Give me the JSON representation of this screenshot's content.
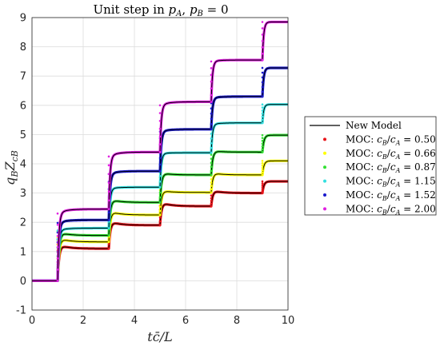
{
  "chart_data": {
    "type": "line",
    "title": "Unit step in pA, pB = 0",
    "xlabel": "tc̄/L",
    "ylabel": "qBZcB",
    "xlim": [
      0,
      10
    ],
    "ylim": [
      -1,
      9
    ],
    "xticks": [
      0,
      2,
      4,
      6,
      8,
      10
    ],
    "yticks": [
      -1,
      0,
      1,
      2,
      3,
      4,
      5,
      6,
      7,
      8,
      9
    ],
    "grid": true,
    "legend_position": "right",
    "steps_at": [
      1,
      3,
      5,
      7,
      9
    ],
    "series": [
      {
        "name": "New Model",
        "style": "line",
        "color": "#000000"
      },
      {
        "name": "MOC: cB/cA = 0.50",
        "style": "markers",
        "color": "#e8141a",
        "ratio": 0.5,
        "levels": [
          0,
          1.1,
          1.9,
          2.55,
          3.0,
          3.4
        ],
        "peaks": [
          0,
          1.25,
          2.05,
          2.7,
          3.1,
          3.4
        ]
      },
      {
        "name": "MOC: cB/cA = 0.66",
        "style": "markers",
        "color": "#ffff00",
        "ratio": 0.66,
        "levels": [
          0,
          1.33,
          2.25,
          3.02,
          3.62,
          4.1
        ],
        "peaks": [
          0,
          1.48,
          2.4,
          3.1,
          3.7,
          4.1
        ]
      },
      {
        "name": "MOC: cB/cA = 0.87",
        "style": "markers",
        "color": "#33e033",
        "ratio": 0.87,
        "levels": [
          0,
          1.55,
          2.68,
          3.62,
          4.4,
          4.98
        ],
        "peaks": [
          0,
          1.68,
          2.8,
          3.7,
          4.45,
          4.98
        ]
      },
      {
        "name": "MOC: cB/cA = 1.15",
        "style": "markers",
        "color": "#33e0e0",
        "ratio": 1.15,
        "levels": [
          0,
          1.8,
          3.2,
          4.38,
          5.4,
          6.03
        ],
        "peaks": [
          0,
          1.72,
          3.15,
          4.35,
          5.35,
          6.03
        ]
      },
      {
        "name": "MOC: cB/cA = 1.52",
        "style": "markers",
        "color": "#1a1acc",
        "ratio": 1.52,
        "levels": [
          0,
          2.08,
          3.75,
          5.18,
          6.3,
          7.28
        ],
        "peaks": [
          0,
          1.98,
          3.65,
          5.1,
          6.25,
          7.28
        ]
      },
      {
        "name": "MOC: cB/cA = 2.00",
        "style": "markers",
        "color": "#e020e0",
        "ratio": 2.0,
        "levels": [
          0,
          2.45,
          4.4,
          6.12,
          7.55,
          8.85
        ],
        "peaks": [
          0,
          2.3,
          4.25,
          6.0,
          7.5,
          8.85
        ]
      }
    ]
  }
}
